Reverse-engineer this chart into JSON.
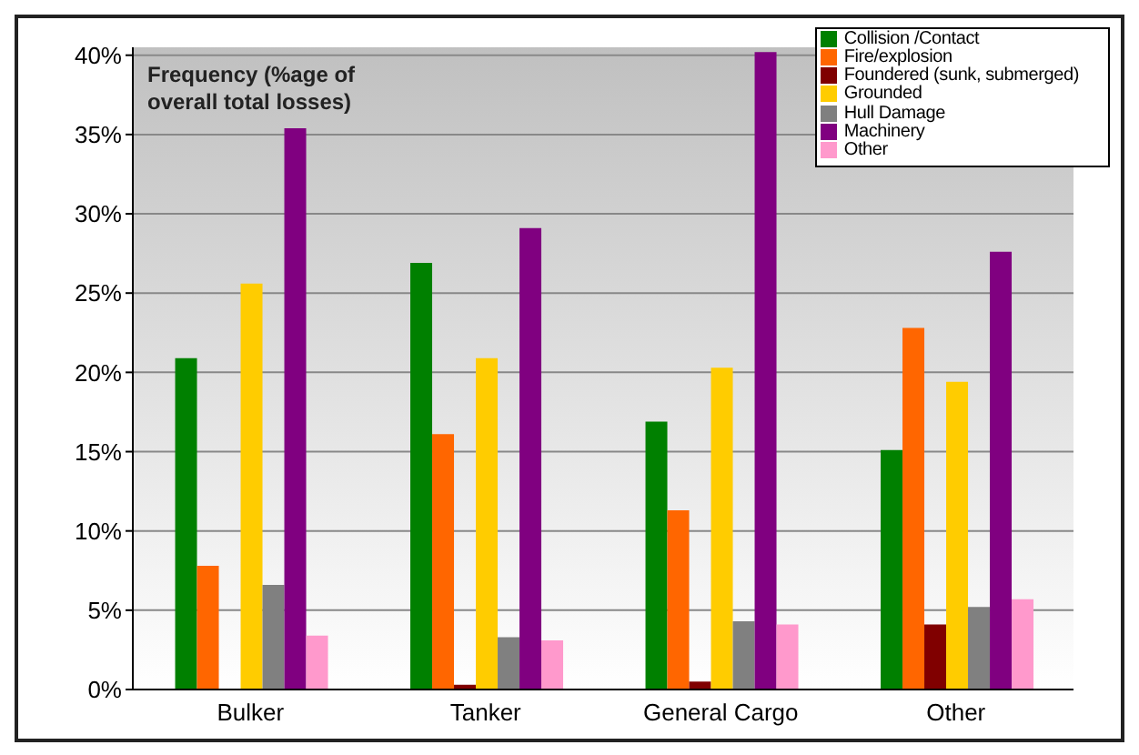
{
  "chart_data": {
    "type": "bar",
    "title": "Frequency (%age of overall total losses)",
    "categories": [
      "Bulker",
      "Tanker",
      "General Cargo",
      "Other"
    ],
    "series": [
      {
        "name": "Collision /Contact",
        "color": "#008000",
        "values": [
          20.9,
          26.9,
          16.9,
          15.1
        ]
      },
      {
        "name": "Fire/explosion",
        "color": "#ff6600",
        "values": [
          7.8,
          16.1,
          11.3,
          22.8
        ]
      },
      {
        "name": "Foundered (sunk, submerged)",
        "color": "#800000",
        "values": [
          0,
          0.3,
          0.5,
          4.1
        ]
      },
      {
        "name": "Grounded",
        "color": "#ffcc00",
        "values": [
          25.6,
          20.9,
          20.3,
          19.4
        ]
      },
      {
        "name": "Hull Damage",
        "color": "#808080",
        "values": [
          6.6,
          3.3,
          4.3,
          5.2
        ]
      },
      {
        "name": "Machinery",
        "color": "#800080",
        "values": [
          35.4,
          29.1,
          40.2,
          27.6
        ]
      },
      {
        "name": "Other",
        "color": "#ff99cc",
        "values": [
          3.4,
          3.1,
          4.1,
          5.7
        ]
      }
    ],
    "ylim": [
      0,
      40.5
    ],
    "yticks": [
      {
        "value": 0,
        "label": "0%"
      },
      {
        "value": 5,
        "label": "5%"
      },
      {
        "value": 10,
        "label": "10%"
      },
      {
        "value": 15,
        "label": "15%"
      },
      {
        "value": 20,
        "label": "20%"
      },
      {
        "value": 25,
        "label": "25%"
      },
      {
        "value": 30,
        "label": "30%"
      },
      {
        "value": 35,
        "label": "35%"
      },
      {
        "value": 40,
        "label": "40%"
      }
    ],
    "grid": "y",
    "legend": "top right"
  }
}
